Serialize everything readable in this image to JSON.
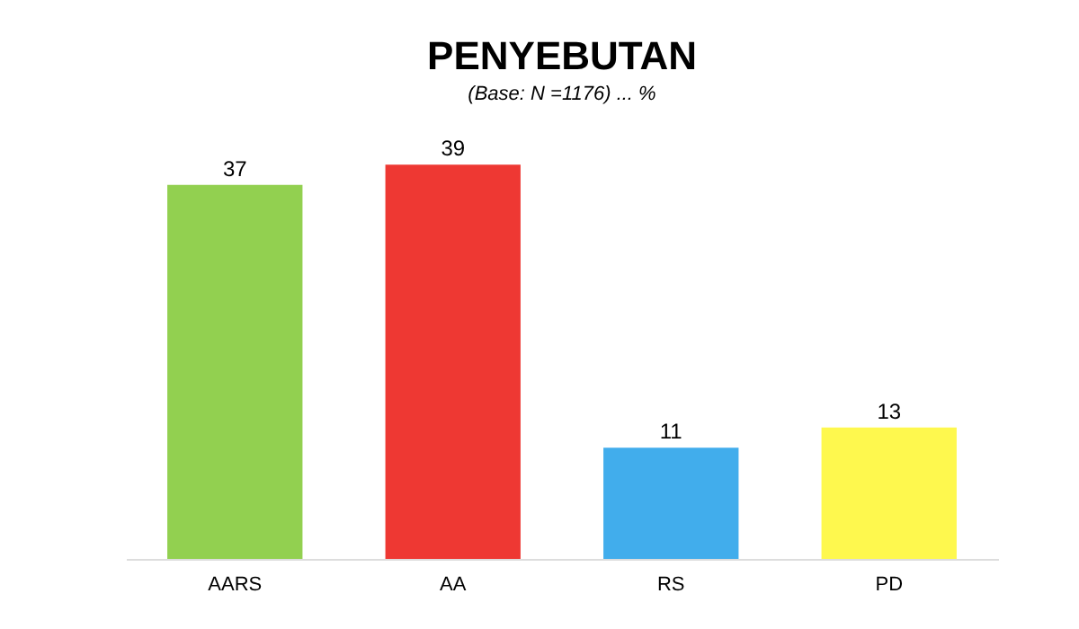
{
  "chart_data": {
    "type": "bar",
    "title": "PENYEBUTAN",
    "subtitle": "(Base: N =1176) ... %",
    "categories": [
      "AARS",
      "AA",
      "RS",
      "PD"
    ],
    "values": [
      37,
      39,
      11,
      13
    ],
    "colors": [
      "#92d050",
      "#ee3833",
      "#41adec",
      "#fef84e"
    ],
    "data_labels": true
  }
}
